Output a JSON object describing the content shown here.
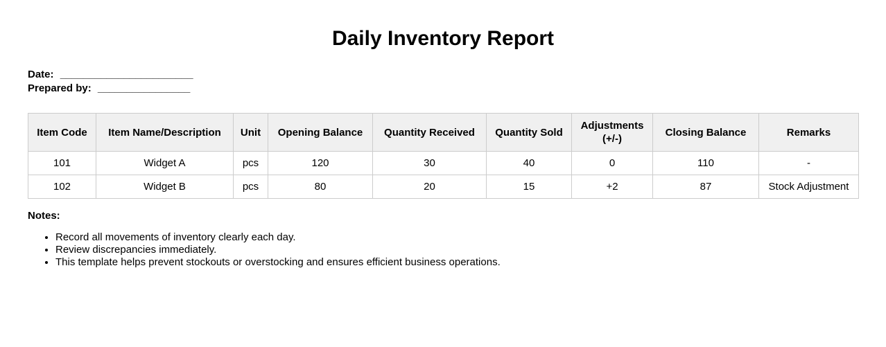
{
  "page": {
    "title": "Daily Inventory Report"
  },
  "meta": {
    "date_label": "Date:",
    "date_line": "_______________________",
    "prepared_by_label": "Prepared by:",
    "prepared_by_line": "________________"
  },
  "table": {
    "columns": [
      "Item Code",
      "Item Name/Description",
      "Unit",
      "Opening Balance",
      "Quantity Received",
      "Quantity Sold",
      "Adjustments (+/-)",
      "Closing Balance",
      "Remarks"
    ],
    "rows": [
      [
        "101",
        "Widget A",
        "pcs",
        "120",
        "30",
        "40",
        "0",
        "110",
        "-"
      ],
      [
        "102",
        "Widget B",
        "pcs",
        "80",
        "20",
        "15",
        "+2",
        "87",
        "Stock Adjustment"
      ]
    ]
  },
  "notes": {
    "heading": "Notes:",
    "items": [
      "Record all movements of inventory clearly each day.",
      "Review discrepancies immediately.",
      "This template helps prevent stockouts or overstocking and ensures efficient business operations."
    ]
  },
  "colors": {
    "header_bg": "#f0f0f0",
    "border": "#cccccc",
    "text": "#000000"
  }
}
